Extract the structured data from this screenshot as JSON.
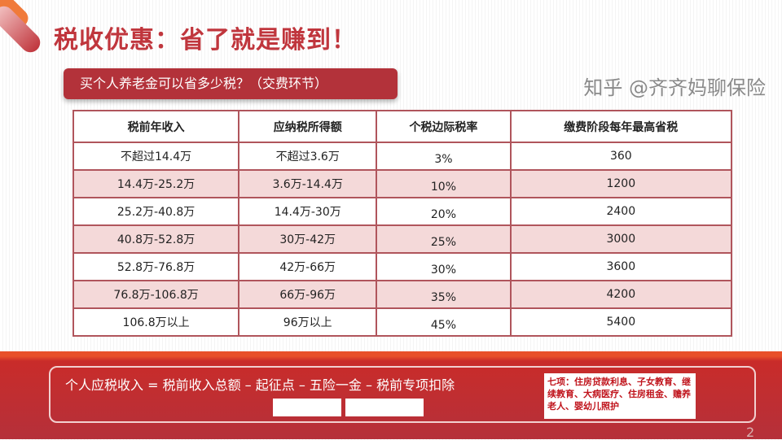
{
  "title": "税收优惠：省了就是赚到！",
  "subtitle": "买个人养老金可以省多少税？（交费环节）",
  "table": {
    "headers": [
      "税前年收入",
      "应纳税所得额",
      "个税边际税率",
      "缴费阶段每年最高省税"
    ],
    "rows": [
      [
        "不超过14.4万",
        "不超过3.6万",
        "3%",
        "360"
      ],
      [
        "14.4万-25.2万",
        "3.6万-14.4万",
        "10%",
        "1200"
      ],
      [
        "25.2万-40.8万",
        "14.4万-30万",
        "20%",
        "2400"
      ],
      [
        "40.8万-52.8万",
        "30万-42万",
        "25%",
        "3000"
      ],
      [
        "52.8万-76.8万",
        "42万-66万",
        "30%",
        "3600"
      ],
      [
        "76.8万-106.8万",
        "66万-96万",
        "35%",
        "4200"
      ],
      [
        "106.8万以上",
        "96万以上",
        "45%",
        "5400"
      ]
    ]
  },
  "formula": "个人应税收入 = 税前收入总额 – 起征点 – 五险一金 – 税前专项扣除",
  "note": "七项：住房贷款利息、子女教育、继续教育、大病医疗、住房租金、赡养老人、婴幼儿照护",
  "watermark": "知乎 @齐齐妈聊保险",
  "page_number": "2",
  "colors": {
    "accent": "#c0363d",
    "row_shade": "#f4d9d9",
    "band": "#b5303a"
  }
}
